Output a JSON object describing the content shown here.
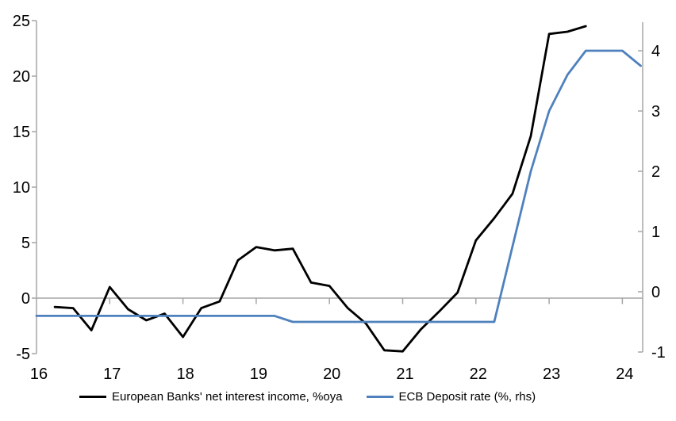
{
  "chart_data": {
    "type": "line",
    "title": "",
    "x_axis": {
      "min": 16,
      "max": 24.27,
      "tick_values": [
        16,
        17,
        18,
        19,
        20,
        21,
        22,
        23,
        24
      ],
      "tick_labels": [
        "16",
        "17",
        "18",
        "19",
        "20",
        "21",
        "22",
        "23",
        "24"
      ]
    },
    "left_axis": {
      "min": -5,
      "max": 25,
      "ticks": [
        25,
        20,
        15,
        10,
        5,
        0,
        -5
      ]
    },
    "right_axis": {
      "min": -1,
      "max": 4.45,
      "ticks": [
        4,
        3,
        2,
        1,
        0,
        -1
      ]
    },
    "zero_line": true,
    "legend_position": "bottom",
    "series": [
      {
        "name": "European Banks' net interest income, %oya",
        "axis": "left",
        "color": "#000000",
        "x": [
          16.25,
          16.5,
          16.75,
          17.0,
          17.25,
          17.5,
          17.75,
          18.0,
          18.25,
          18.5,
          18.75,
          19.0,
          19.25,
          19.5,
          19.75,
          20.0,
          20.25,
          20.5,
          20.75,
          21.0,
          21.25,
          21.5,
          21.75,
          22.0,
          22.25,
          22.5,
          22.75,
          23.0,
          23.25,
          23.5
        ],
        "values": [
          -0.8,
          -0.9,
          -2.9,
          1.0,
          -1.0,
          -2.0,
          -1.4,
          -3.5,
          -0.9,
          -0.3,
          3.4,
          4.6,
          4.3,
          4.45,
          1.4,
          1.1,
          -0.9,
          -2.3,
          -4.7,
          -4.8,
          -2.8,
          -1.2,
          0.5,
          5.2,
          7.2,
          9.4,
          14.6,
          23.8,
          24.0,
          24.5
        ]
      },
      {
        "name": "ECB Deposit rate (%, rhs)",
        "axis": "right",
        "color": "#4f81bd",
        "x": [
          16.0,
          16.25,
          16.5,
          16.75,
          17.0,
          17.25,
          17.5,
          17.75,
          18.0,
          18.25,
          18.5,
          18.75,
          19.0,
          19.25,
          19.5,
          19.75,
          20.0,
          20.25,
          20.5,
          20.75,
          21.0,
          21.25,
          21.5,
          21.75,
          22.0,
          22.25,
          22.5,
          22.75,
          23.0,
          23.25,
          23.5,
          23.75,
          24.0,
          24.25
        ],
        "values": [
          -0.4,
          -0.4,
          -0.4,
          -0.4,
          -0.4,
          -0.4,
          -0.4,
          -0.4,
          -0.4,
          -0.4,
          -0.4,
          -0.4,
          -0.4,
          -0.4,
          -0.5,
          -0.5,
          -0.5,
          -0.5,
          -0.5,
          -0.5,
          -0.5,
          -0.5,
          -0.5,
          -0.5,
          -0.5,
          -0.5,
          0.75,
          2.0,
          3.0,
          3.6,
          4.0,
          4.0,
          4.0,
          3.75
        ]
      }
    ]
  },
  "colors": {
    "axis_gray": "#a6a6a6",
    "background": "#ffffff",
    "text": "#000000",
    "blue_series": "#4f81bd",
    "black_series": "#000000"
  }
}
